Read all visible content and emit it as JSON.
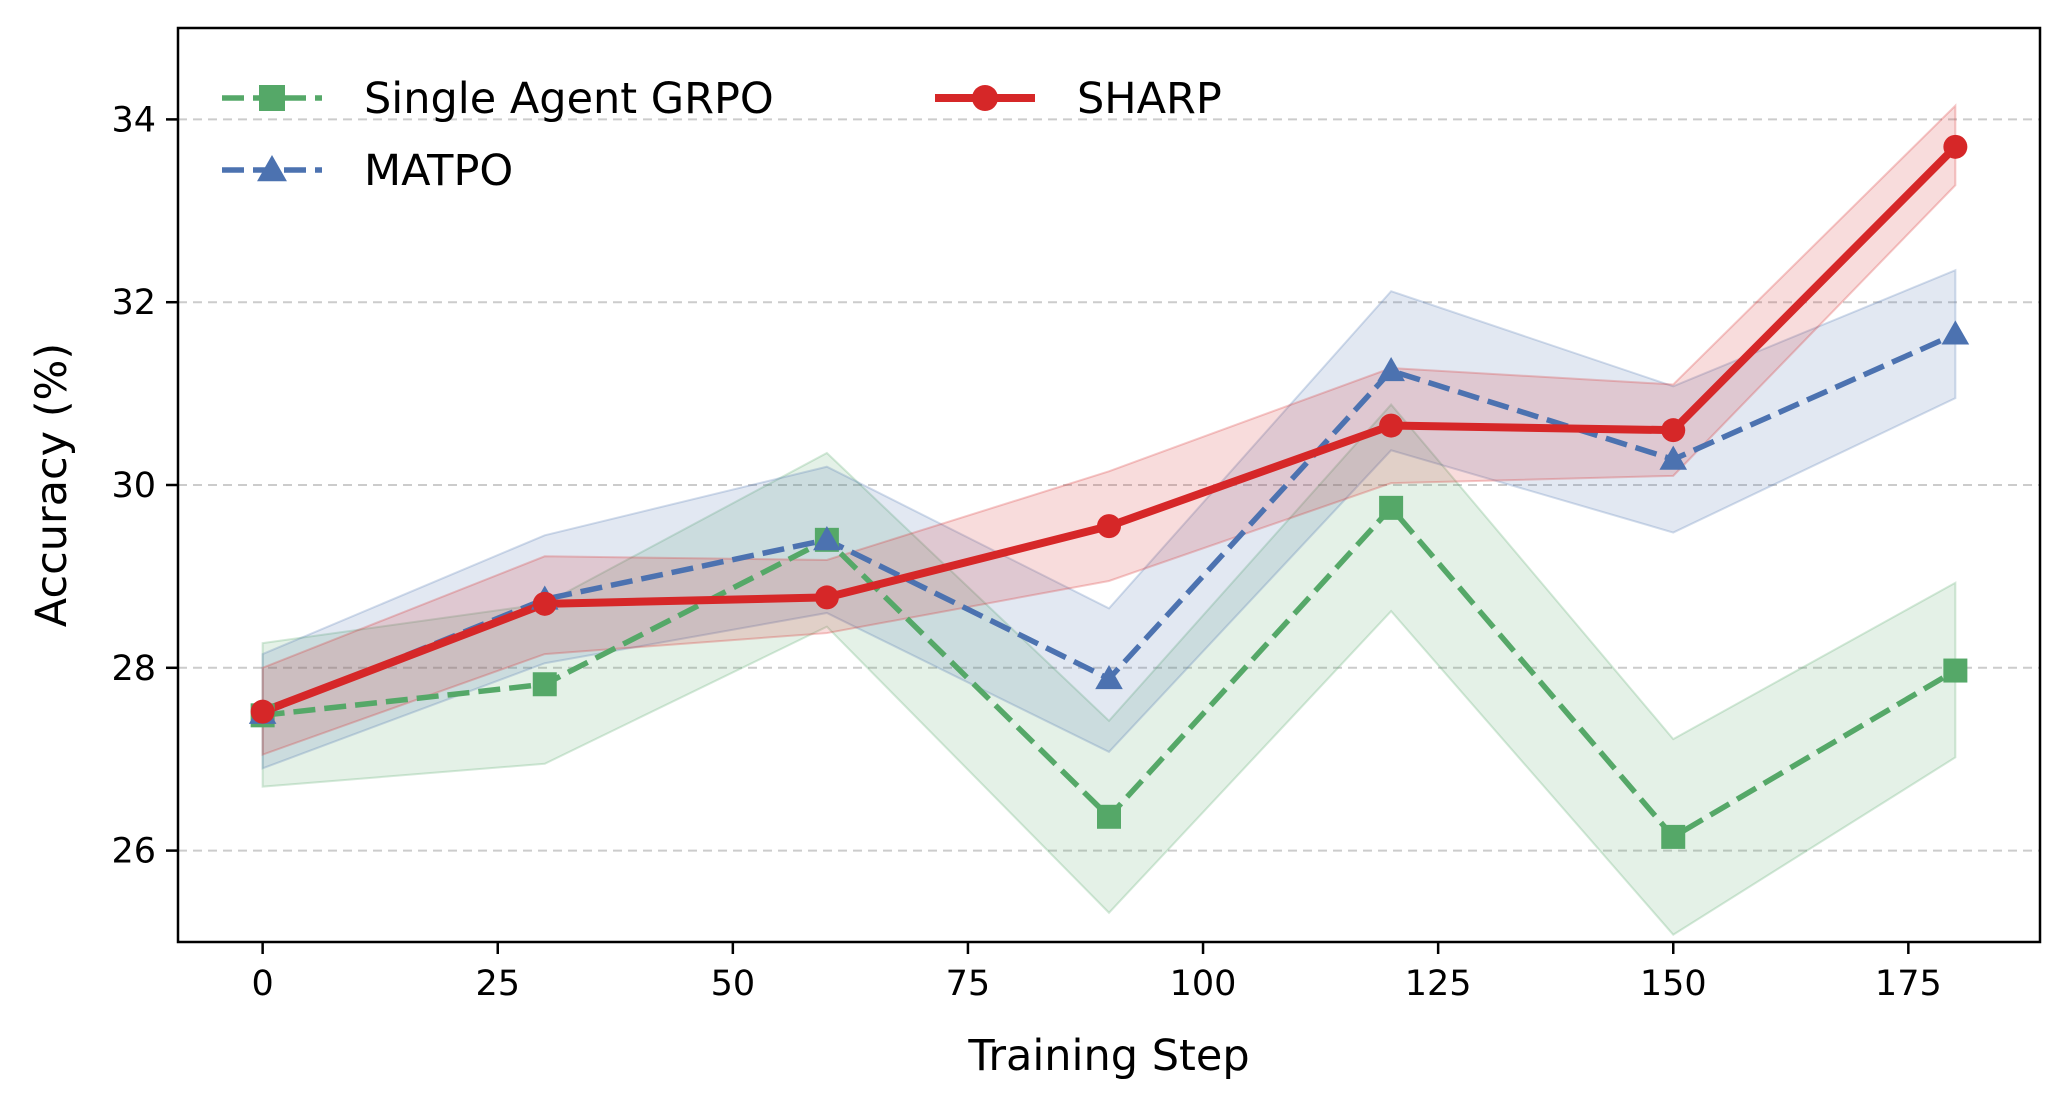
{
  "chart_data": {
    "type": "line",
    "title": "",
    "xlabel": "Training Step",
    "ylabel": "Accuracy (%)",
    "xlim": [
      -9,
      189
    ],
    "ylim": [
      25,
      35
    ],
    "xticks": [
      0,
      25,
      50,
      75,
      100,
      125,
      150,
      175
    ],
    "yticks": [
      26,
      28,
      30,
      32,
      34
    ],
    "grid": "horizontal dashed",
    "legend_position": "top-left",
    "x": [
      0,
      30,
      60,
      90,
      120,
      150,
      180
    ],
    "series": [
      {
        "name": "Single Agent GRPO",
        "color": "#55a868",
        "line_style": "dashed",
        "marker": "square",
        "values": [
          27.48,
          27.82,
          29.4,
          26.37,
          29.75,
          26.15,
          27.97
        ],
        "lower": [
          26.7,
          26.95,
          28.45,
          25.32,
          28.62,
          25.08,
          27.02
        ],
        "upper": [
          28.27,
          28.7,
          30.35,
          27.42,
          30.88,
          27.22,
          28.93
        ]
      },
      {
        "name": "MATPO",
        "color": "#4c72b0",
        "line_style": "dashed",
        "marker": "triangle",
        "values": [
          27.5,
          28.75,
          29.4,
          27.88,
          31.25,
          30.28,
          31.65
        ],
        "lower": [
          26.9,
          28.05,
          28.6,
          27.08,
          30.38,
          29.48,
          30.95
        ],
        "upper": [
          28.15,
          29.45,
          30.2,
          28.65,
          32.12,
          31.08,
          32.35
        ]
      },
      {
        "name": "SHARP",
        "color": "#d62728",
        "line_style": "solid",
        "marker": "circle",
        "values": [
          27.52,
          28.7,
          28.77,
          29.55,
          30.65,
          30.6,
          33.7
        ],
        "lower": [
          27.05,
          28.15,
          28.38,
          28.95,
          30.02,
          30.1,
          33.28
        ],
        "upper": [
          28.0,
          29.22,
          29.18,
          30.15,
          31.28,
          31.1,
          34.15
        ]
      }
    ]
  }
}
